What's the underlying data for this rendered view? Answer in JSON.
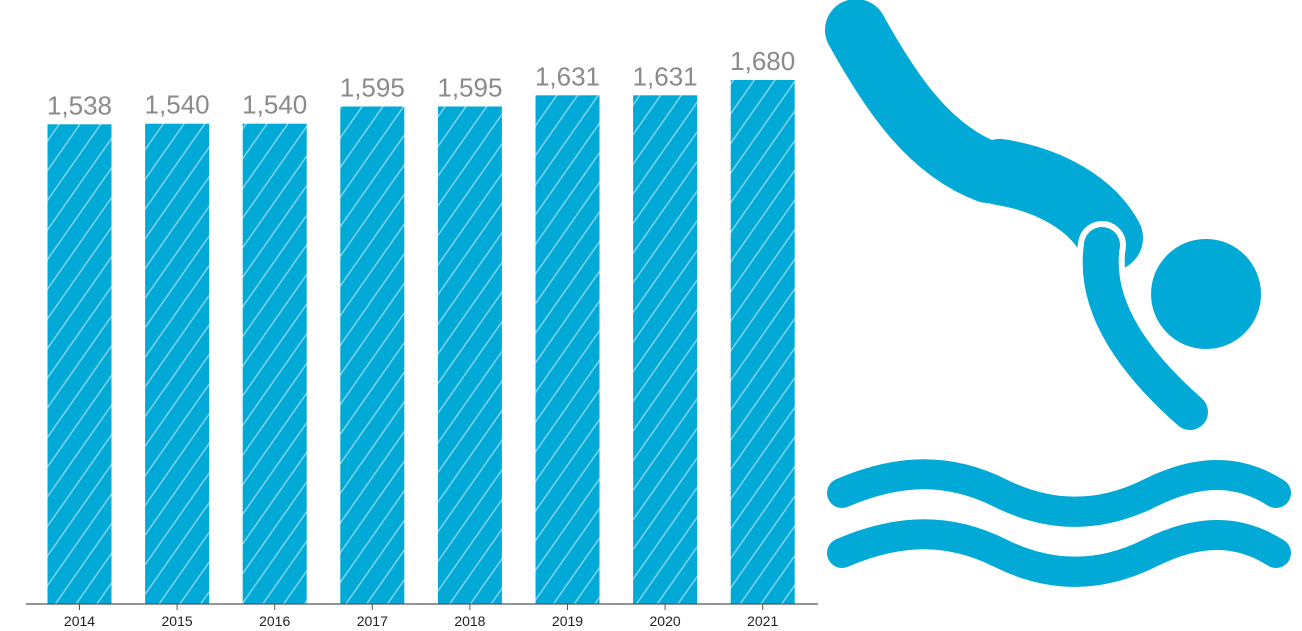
{
  "chart_data": {
    "type": "bar",
    "categories": [
      "2014",
      "2015",
      "2016",
      "2017",
      "2018",
      "2019",
      "2020",
      "2021"
    ],
    "values": [
      1538,
      1540,
      1540,
      1595,
      1595,
      1631,
      1631,
      1680
    ],
    "value_labels": [
      "1,538",
      "1,540",
      "1,540",
      "1,595",
      "1,595",
      "1,631",
      "1,631",
      "1,680"
    ],
    "title": "",
    "xlabel": "",
    "ylabel": "",
    "ylim": [
      0,
      1680
    ],
    "grid": false,
    "legend": "none",
    "bar_pattern": "diagonal-hatch"
  },
  "colors": {
    "bar": "#00a9d6",
    "hatch": "#7fd3ea",
    "value_label": "#8a8a8a",
    "tick_label": "#222222",
    "axis": "#555555",
    "icon": "#00a9d6"
  },
  "illustration": {
    "icon": "diver-icon",
    "waves": "waves-icon"
  }
}
